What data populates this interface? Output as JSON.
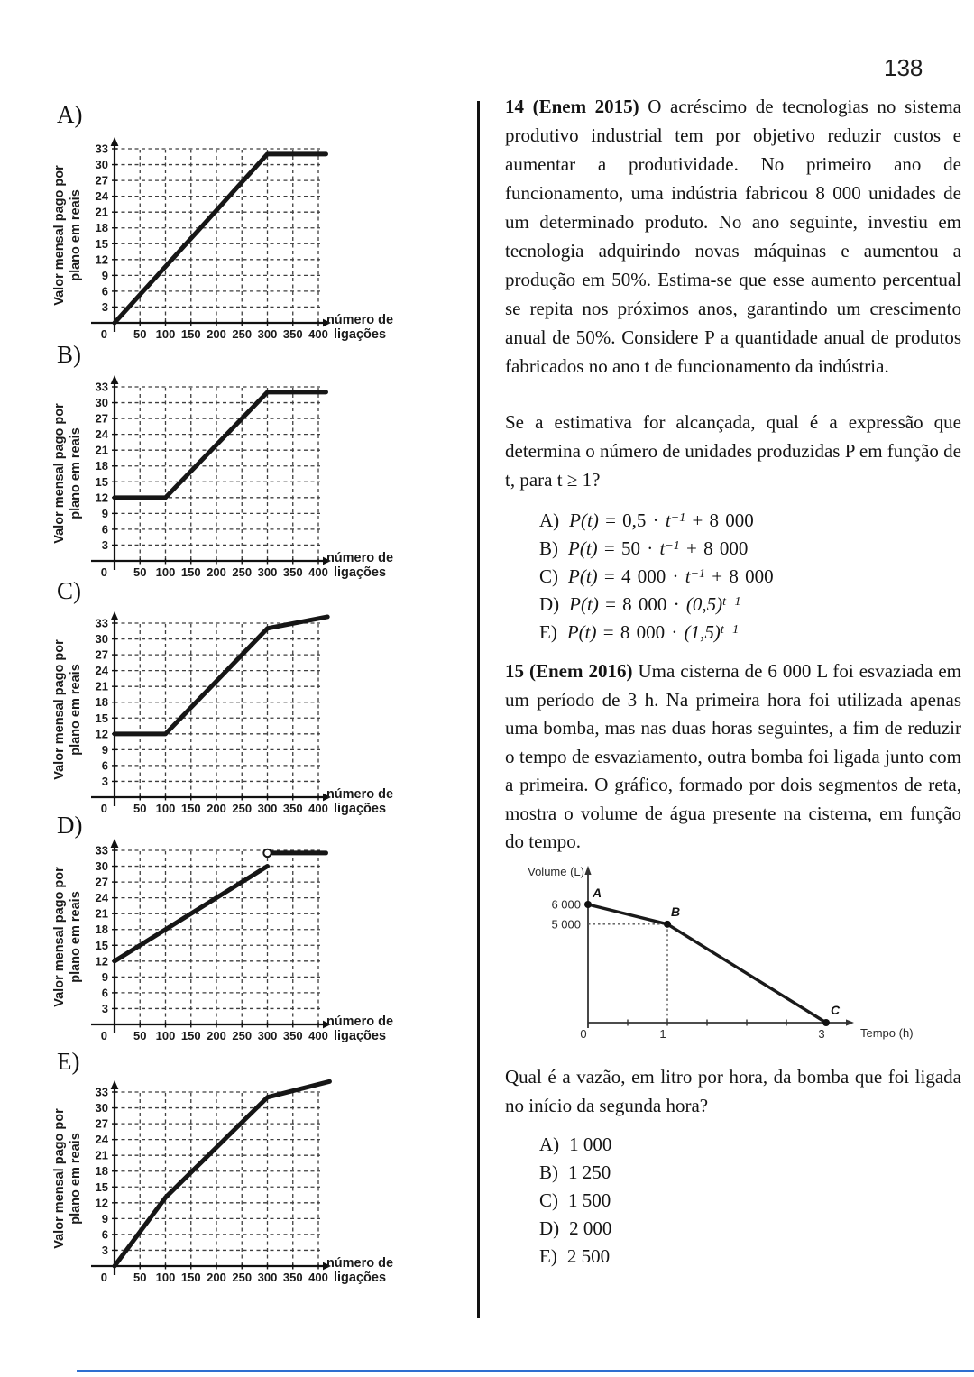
{
  "page_number": "138",
  "chart_data": [
    {
      "id": "plan-A",
      "label": "A)",
      "type": "line",
      "ylabel": [
        "Valor mensal pago por",
        "plano em reais"
      ],
      "xlabel": [
        "número de",
        "ligações"
      ],
      "origin_label": "0",
      "x_ticks": [
        50,
        100,
        150,
        200,
        250,
        300,
        350,
        400
      ],
      "y_ticks": [
        3,
        6,
        9,
        12,
        15,
        18,
        21,
        24,
        27,
        30,
        33
      ],
      "xlim": [
        0,
        430
      ],
      "ylim": [
        0,
        35
      ],
      "segments": [
        [
          [
            0,
            0
          ],
          [
            300,
            32
          ],
          [
            415,
            32
          ]
        ]
      ]
    },
    {
      "id": "plan-B",
      "label": "B)",
      "type": "line",
      "ylabel": [
        "Valor mensal pago por",
        "plano em reais"
      ],
      "xlabel": [
        "número de",
        "ligações"
      ],
      "origin_label": "0",
      "x_ticks": [
        50,
        100,
        150,
        200,
        250,
        300,
        350,
        400
      ],
      "y_ticks": [
        3,
        6,
        9,
        12,
        15,
        18,
        21,
        24,
        27,
        30,
        33
      ],
      "xlim": [
        0,
        430
      ],
      "ylim": [
        0,
        35
      ],
      "segments": [
        [
          [
            0,
            12
          ],
          [
            100,
            12
          ],
          [
            300,
            32
          ],
          [
            415,
            32
          ]
        ]
      ]
    },
    {
      "id": "plan-C",
      "label": "C)",
      "type": "line",
      "ylabel": [
        "Valor mensal pago por",
        "plano em reais"
      ],
      "xlabel": [
        "número de",
        "ligações"
      ],
      "origin_label": "0",
      "x_ticks": [
        50,
        100,
        150,
        200,
        250,
        300,
        350,
        400
      ],
      "y_ticks": [
        3,
        6,
        9,
        12,
        15,
        18,
        21,
        24,
        27,
        30,
        33
      ],
      "xlim": [
        0,
        430
      ],
      "ylim": [
        0,
        35
      ],
      "segments": [
        [
          [
            0,
            12
          ],
          [
            100,
            12
          ],
          [
            300,
            32
          ],
          [
            418,
            34.2
          ]
        ]
      ]
    },
    {
      "id": "plan-D",
      "label": "D)",
      "type": "line",
      "ylabel": [
        "Valor mensal pago por",
        "plano em reais"
      ],
      "xlabel": [
        "número de",
        "ligações"
      ],
      "origin_label": "0",
      "x_ticks": [
        50,
        100,
        150,
        200,
        250,
        300,
        350,
        400
      ],
      "y_ticks": [
        3,
        6,
        9,
        12,
        15,
        18,
        21,
        24,
        27,
        30,
        33
      ],
      "xlim": [
        0,
        430
      ],
      "ylim": [
        0,
        35
      ],
      "segments": [
        [
          [
            0,
            12
          ],
          [
            300,
            30
          ]
        ],
        [
          [
            300,
            32.5
          ],
          [
            415,
            32.5
          ]
        ]
      ],
      "open_point": [
        300,
        32.5
      ]
    },
    {
      "id": "plan-E",
      "label": "E)",
      "type": "line",
      "ylabel": [
        "Valor mensal pago por",
        "plano em reais"
      ],
      "xlabel": [
        "número de",
        "ligações"
      ],
      "origin_label": "0",
      "x_ticks": [
        50,
        100,
        150,
        200,
        250,
        300,
        350,
        400
      ],
      "y_ticks": [
        3,
        6,
        9,
        12,
        15,
        18,
        21,
        24,
        27,
        30,
        33
      ],
      "xlim": [
        0,
        430
      ],
      "ylim": [
        0,
        35
      ],
      "segments": [
        [
          [
            0,
            0
          ],
          [
            100,
            13
          ],
          [
            300,
            32
          ],
          [
            422,
            35
          ]
        ]
      ]
    },
    {
      "id": "cisterna",
      "type": "line",
      "ylabel": "Volume (L)",
      "xlabel": "Tempo (h)",
      "points": [
        {
          "label": "A",
          "x": 0,
          "y": 6000
        },
        {
          "label": "B",
          "x": 1,
          "y": 5000
        },
        {
          "label": "C",
          "x": 3,
          "y": 0
        }
      ],
      "y_ref_lines": [
        {
          "label": "6 000",
          "value": 6000
        },
        {
          "label": "5 000",
          "value": 5000
        }
      ],
      "x_axis_labels": [
        {
          "label": "0",
          "value": 0
        },
        {
          "label": "1",
          "value": 1
        },
        {
          "label": "3",
          "value": 3
        }
      ],
      "x_minor_ticks": [
        0.5,
        1,
        1.5,
        2,
        2.5,
        3
      ],
      "xlim": [
        0,
        3.3
      ],
      "ylim": [
        0,
        7200
      ],
      "dashed_guides_at": {
        "x": 1,
        "y": 5000
      }
    }
  ],
  "q14": {
    "heading": "14 (Enem 2015)",
    "body": " O acréscimo de tecnologias no sistema produtivo industrial tem por objetivo reduzir custos e aumentar a produtividade. No primeiro ano de funcionamento, uma indústria fabricou 8 000 unidades de um determinado produto. No ano seguinte, investiu em tecnologia adquirindo novas máquinas e aumentou a produção em 50%. Estima-se que esse aumento percentual se repita nos próximos anos, garantindo um crescimento anual de 50%. Considere P a quantidade anual de produtos fabricados no ano t de funcionamento da indústria.",
    "prompt": "Se a estimativa for alcançada, qual é a expressão que determina o número de unidades produzidas P em função de t, para t ≥ 1?",
    "options": [
      {
        "letter": "A)",
        "func": "P(t)",
        "eq": " = ",
        "coef": "0,5 · ",
        "base": "t",
        "sup": "−1",
        "tail": " + 8 000"
      },
      {
        "letter": "B)",
        "func": "P(t)",
        "eq": " = ",
        "coef": "50 · ",
        "base": "t",
        "sup": "−1",
        "tail": " + 8 000"
      },
      {
        "letter": "C)",
        "func": "P(t)",
        "eq": " = ",
        "coef": "4 000 · ",
        "base": "t",
        "sup": "−1",
        "tail": " + 8 000"
      },
      {
        "letter": "D)",
        "func": "P(t)",
        "eq": " = ",
        "coef": "8 000 · ",
        "base": "(0,5)",
        "sup": "t−1",
        "tail": ""
      },
      {
        "letter": "E)",
        "func": "P(t)",
        "eq": " = ",
        "coef": "8 000 · ",
        "base": "(1,5)",
        "sup": "t−1",
        "tail": ""
      }
    ]
  },
  "q15": {
    "heading": "15 (Enem 2016)",
    "body": " Uma cisterna de 6 000 L foi esvaziada em um período de 3 h. Na primeira hora foi utilizada apenas uma bomba, mas nas duas horas seguintes, a fim de reduzir o tempo de esvaziamento, outra bomba foi ligada junto com a primeira. O gráfico, formado por dois segmentos de reta, mostra o volume de água presente na cisterna, em função do tempo.",
    "prompt": "Qual é a vazão, em litro por hora, da bomba que foi ligada no início da segunda hora?",
    "options": [
      {
        "letter": "A)",
        "value": "1 000"
      },
      {
        "letter": "B)",
        "value": "1 250"
      },
      {
        "letter": "C)",
        "value": "1 500"
      },
      {
        "letter": "D)",
        "value": "2 000"
      },
      {
        "letter": "E)",
        "value": "2 500"
      }
    ]
  }
}
